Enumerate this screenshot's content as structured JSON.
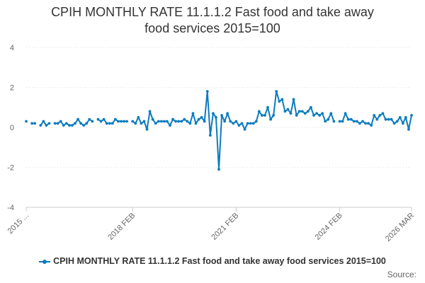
{
  "chart_data": {
    "type": "line",
    "title_line1": "CPIH MONTHLY RATE 11.1.1.2 Fast food and take away",
    "title_line2": "food services 2015=100",
    "xlabel": "",
    "ylabel": "",
    "ylim": [
      -4,
      4
    ],
    "yticks": [
      -4,
      -2,
      0,
      2,
      4
    ],
    "xtick_labels": [
      "2015 ...",
      "2018 FEB",
      "2021 FEB",
      "2024 FEB",
      "2026 MAR"
    ],
    "xtick_index": [
      0,
      37,
      73,
      109,
      134
    ],
    "series": [
      {
        "name": "CPIH MONTHLY RATE 11.1.1.2 Fast food and take away food services 2015=100",
        "color": "#0b7bbf",
        "values": [
          0.3,
          null,
          0.2,
          0.2,
          null,
          0.1,
          0.3,
          0.1,
          0.2,
          null,
          0.2,
          0.2,
          0.3,
          0.1,
          0.2,
          0.1,
          0.1,
          0.2,
          0.4,
          0.2,
          0.1,
          0.2,
          0.4,
          0.3,
          null,
          0.4,
          0.3,
          0.4,
          0.2,
          0.2,
          0.2,
          0.4,
          0.3,
          0.3,
          0.3,
          0.3,
          null,
          0.3,
          0.2,
          0.5,
          0.2,
          0.3,
          -0.1,
          0.8,
          0.4,
          0.2,
          0.3,
          0.3,
          0.3,
          0.3,
          0.1,
          0.4,
          0.3,
          0.3,
          0.3,
          0.4,
          0.3,
          0.2,
          0.7,
          0.2,
          0.4,
          0.5,
          0.3,
          1.8,
          -0.4,
          0.7,
          0.5,
          -2.1,
          0.6,
          0.3,
          0.7,
          0.3,
          0.2,
          0.3,
          0.1,
          0.2,
          -0.1,
          0.2,
          0.2,
          0.2,
          0.3,
          0.8,
          0.6,
          0.6,
          1.0,
          0.4,
          0.6,
          1.8,
          1.3,
          1.4,
          0.8,
          0.9,
          0.7,
          1.4,
          0.6,
          0.8,
          0.8,
          0.7,
          0.8,
          1.0,
          0.6,
          0.7,
          0.6,
          0.7,
          0.3,
          0.4,
          0.7,
          0.3,
          null,
          0.3,
          0.3,
          0.7,
          0.4,
          0.4,
          0.3,
          0.3,
          0.2,
          0.3,
          0.2,
          0.2,
          0.1,
          0.6,
          0.4,
          0.6,
          0.7,
          0.4,
          0.4,
          0.4,
          0.2,
          0.3,
          0.5,
          0.2,
          0.5,
          -0.1,
          0.6
        ]
      }
    ],
    "grid": true,
    "legend_position": "bottom"
  },
  "source_label": "Source:"
}
